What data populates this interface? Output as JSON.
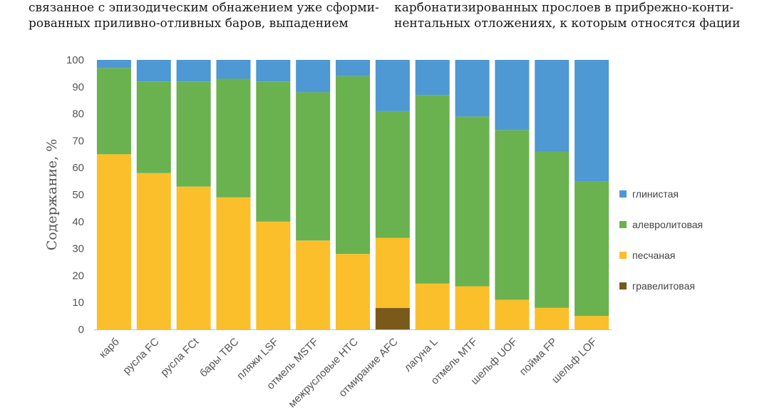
{
  "top_text": {
    "left_lines": [
      "связанное с эпизодическим обнажением уже сформи-",
      "рованных приливно-отливных баров, выпадением"
    ],
    "right_lines": [
      "карбонатизированных прослоев в прибрежно-конти-",
      "нентальных отложениях, к которым относятся фации"
    ]
  },
  "chart_data": {
    "type": "bar",
    "stacked": true,
    "title": "",
    "xlabel": "",
    "ylabel": "Содержание, %",
    "ylim": [
      0,
      100
    ],
    "yticks": [
      0,
      10,
      20,
      30,
      40,
      50,
      60,
      70,
      80,
      90,
      100
    ],
    "grid": false,
    "legend_position": "right",
    "categories": [
      "карб",
      "русла FC",
      "русла FCt",
      "бары TBC",
      "пляжи LSF",
      "отмель MSTF",
      "межрусловые HTC",
      "отмирание AFC",
      "лагуна L",
      "отмель MTF",
      "шельф UOF",
      "пойма FP",
      "шельф LOF"
    ],
    "series": [
      {
        "name": "гравелитовая",
        "color": "#7a5a1a",
        "values": [
          0,
          0,
          0,
          0,
          0,
          0,
          0,
          8,
          0,
          0,
          0,
          0,
          0
        ]
      },
      {
        "name": "песчаная",
        "color": "#fbbf2c",
        "values": [
          65,
          58,
          53,
          49,
          40,
          33,
          28,
          26,
          17,
          16,
          11,
          8,
          5
        ]
      },
      {
        "name": "алевролитовая",
        "color": "#6ab24f",
        "values": [
          32,
          34,
          39,
          44,
          52,
          55,
          66,
          47,
          70,
          63,
          63,
          58,
          50
        ]
      },
      {
        "name": "глинистая",
        "color": "#4e98d3",
        "values": [
          3,
          8,
          8,
          7,
          8,
          12,
          6,
          19,
          13,
          21,
          26,
          34,
          45
        ]
      }
    ],
    "legend_order": [
      "глинистая",
      "алевролитовая",
      "песчаная",
      "гравелитовая"
    ]
  }
}
